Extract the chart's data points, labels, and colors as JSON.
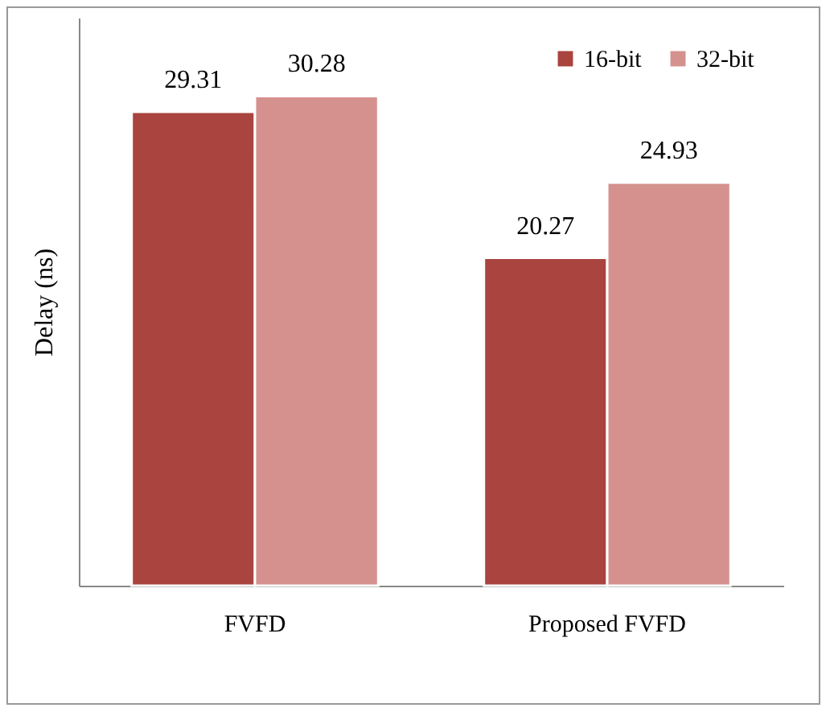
{
  "chart_data": {
    "type": "bar",
    "ylabel": "Delay (ns)",
    "categories": [
      "FVFD",
      "Proposed FVFD"
    ],
    "series": [
      {
        "name": "16-bit",
        "color": "#a9443e",
        "values": [
          29.31,
          20.27
        ]
      },
      {
        "name": "32-bit",
        "color": "#d4918e",
        "values": [
          30.28,
          24.93
        ]
      }
    ],
    "data_labels": true,
    "legend": "top right",
    "grid": false
  }
}
